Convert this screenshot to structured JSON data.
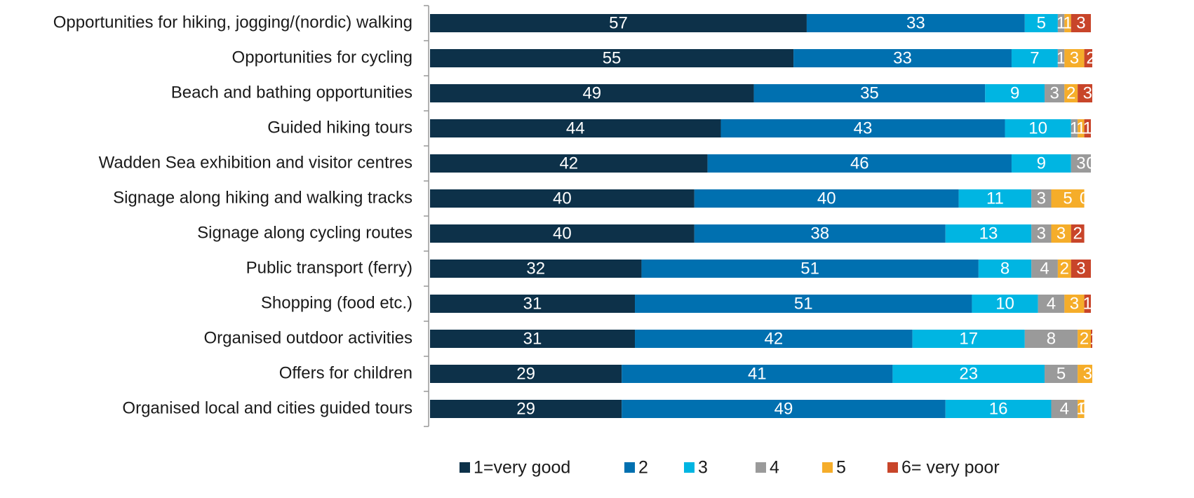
{
  "chart_data": {
    "type": "stacked-bar",
    "orientation": "horizontal",
    "categories": [
      "Opportunities for hiking, jogging/(nordic) walking",
      "Opportunities for cycling",
      "Beach and bathing opportunities",
      "Guided hiking tours",
      "Wadden Sea exhibition and visitor centres",
      "Signage along hiking and walking tracks",
      "Signage along cycling routes",
      "Public transport (ferry)",
      "Shopping (food etc.)",
      "Organised outdoor activities",
      "Offers for children",
      "Organised local and cities guided tours"
    ],
    "series": [
      {
        "name": "1=very good",
        "color": "#0d3149",
        "values": [
          57,
          55,
          49,
          44,
          42,
          40,
          40,
          32,
          31,
          31,
          29,
          29
        ]
      },
      {
        "name": "2",
        "color": "#0070b0",
        "values": [
          33,
          33,
          35,
          43,
          46,
          40,
          38,
          51,
          51,
          42,
          41,
          49
        ]
      },
      {
        "name": "3",
        "color": "#00b5e2",
        "values": [
          5,
          7,
          9,
          10,
          9,
          11,
          13,
          8,
          10,
          17,
          23,
          16
        ]
      },
      {
        "name": "4",
        "color": "#9a9a9a",
        "values": [
          1,
          1,
          3,
          1,
          3,
          3,
          3,
          4,
          4,
          8,
          5,
          4
        ]
      },
      {
        "name": "5",
        "color": "#f5ad2a",
        "values": [
          1,
          3,
          2,
          1,
          0,
          5,
          3,
          2,
          3,
          2,
          3,
          1
        ]
      },
      {
        "name": "6= very poor",
        "color": "#c8452a",
        "values": [
          3,
          2,
          3,
          1,
          0,
          0,
          2,
          3,
          1,
          1,
          0,
          0
        ]
      }
    ],
    "xlim": [
      0,
      100
    ]
  }
}
